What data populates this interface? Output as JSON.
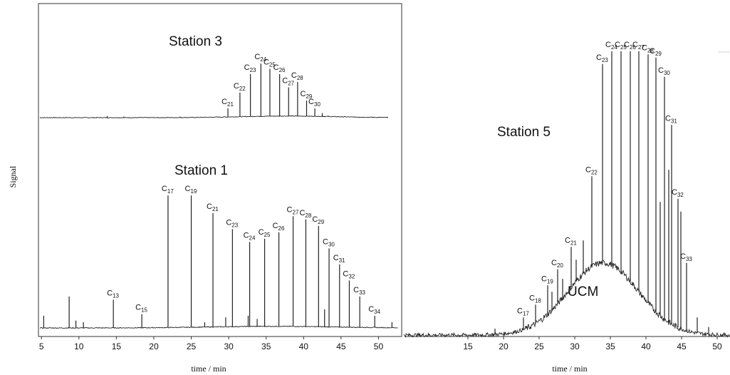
{
  "chart_data": {
    "type": "line",
    "ylabel": "Signal",
    "panels": [
      {
        "name": "left",
        "xlabel": "time / min",
        "xlim": [
          4.6,
          53
        ],
        "xticks": [
          5,
          10,
          15,
          20,
          25,
          30,
          35,
          40,
          45,
          50
        ],
        "traces": [
          {
            "label": "Station 3",
            "baseline": 0.205,
            "x_range": [
              4.8,
              51.3
            ],
            "hump": {
              "center": 38,
              "width": 9,
              "height": 0.006
            },
            "peaks": [
              {
                "label": "C",
                "sub": "21",
                "x": 29.9,
                "y": 0.24
              },
              {
                "label": "C",
                "sub": "22",
                "x": 31.5,
                "y": 0.3
              },
              {
                "label": "C",
                "sub": "23",
                "x": 32.9,
                "y": 0.37
              },
              {
                "label": "C",
                "sub": "24",
                "x": 34.3,
                "y": 0.41
              },
              {
                "label": "C",
                "sub": "25",
                "x": 35.5,
                "y": 0.39
              },
              {
                "label": "C",
                "sub": "26",
                "x": 36.8,
                "y": 0.37
              },
              {
                "label": "C",
                "sub": "27",
                "x": 38.0,
                "y": 0.32
              },
              {
                "label": "C",
                "sub": "28",
                "x": 39.2,
                "y": 0.34
              },
              {
                "label": "C",
                "sub": "29",
                "x": 40.4,
                "y": 0.27
              },
              {
                "label": "C",
                "sub": "30",
                "x": 41.5,
                "y": 0.24
              }
            ],
            "extra_peaks": [
              [
                42.5,
                0.222
              ],
              [
                43.3,
                0.212
              ],
              [
                13.8,
                0.211
              ],
              [
                16.0,
                0.209
              ],
              [
                23.5,
                0.209
              ]
            ]
          },
          {
            "label": "Station 1",
            "baseline": 0.012,
            "x_range": [
              4.8,
              52.6
            ],
            "hump": {
              "center": 36,
              "width": 12,
              "height": 0.005
            },
            "peaks": [
              {
                "label": "C",
                "sub": "13",
                "x": 14.6,
                "y": 0.1
              },
              {
                "label": "C",
                "sub": "15",
                "x": 18.4,
                "y": 0.055
              },
              {
                "label": "C",
                "sub": "17",
                "x": 21.9,
                "y": 0.425
              },
              {
                "label": "C",
                "sub": "19",
                "x": 25.0,
                "y": 0.425
              },
              {
                "label": "C",
                "sub": "21",
                "x": 27.9,
                "y": 0.37
              },
              {
                "label": "C",
                "sub": "23",
                "x": 30.5,
                "y": 0.32
              },
              {
                "label": "C",
                "sub": "24",
                "x": 32.8,
                "y": 0.28
              },
              {
                "label": "C",
                "sub": "25",
                "x": 34.8,
                "y": 0.29
              },
              {
                "label": "C",
                "sub": "26",
                "x": 36.7,
                "y": 0.31
              },
              {
                "label": "C",
                "sub": "27",
                "x": 38.6,
                "y": 0.36
              },
              {
                "label": "C",
                "sub": "28",
                "x": 40.3,
                "y": 0.35
              },
              {
                "label": "C",
                "sub": "29",
                "x": 42.0,
                "y": 0.33
              },
              {
                "label": "C",
                "sub": "30",
                "x": 43.4,
                "y": 0.26
              },
              {
                "label": "C",
                "sub": "31",
                "x": 44.8,
                "y": 0.21
              },
              {
                "label": "C",
                "sub": "32",
                "x": 46.1,
                "y": 0.16
              },
              {
                "label": "C",
                "sub": "33",
                "x": 47.5,
                "y": 0.11
              },
              {
                "label": "C",
                "sub": "34",
                "x": 49.5,
                "y": 0.05
              }
            ],
            "extra_peaks": [
              [
                5.3,
                0.05
              ],
              [
                8.7,
                0.11
              ],
              [
                9.6,
                0.035
              ],
              [
                10.6,
                0.03
              ],
              [
                29.6,
                0.045
              ],
              [
                32.6,
                0.05
              ],
              [
                42.8,
                0.07
              ],
              [
                51.8,
                0.03
              ],
              [
                26.8,
                0.03
              ],
              [
                33.8,
                0.04
              ]
            ]
          }
        ]
      },
      {
        "name": "right",
        "xlabel": "time / min",
        "xlim": [
          6,
          51.8
        ],
        "xticks": [
          15,
          20,
          25,
          30,
          35,
          40,
          45,
          50
        ],
        "traces": [
          {
            "label": "Station 5",
            "annotation": "UCM",
            "baseline": 0.035,
            "x_range": [
              6.0,
              51.8
            ],
            "hump": {
              "center": 34,
              "width": 7,
              "height": 0.225
            },
            "peaks": [
              {
                "label": "C",
                "sub": "17",
                "x": 22.8,
                "y": 0.09
              },
              {
                "label": "C",
                "sub": "18",
                "x": 24.5,
                "y": 0.13
              },
              {
                "label": "C",
                "sub": "19",
                "x": 26.2,
                "y": 0.19
              },
              {
                "label": "C",
                "sub": "20",
                "x": 27.6,
                "y": 0.24
              },
              {
                "label": "C",
                "sub": "21",
                "x": 29.5,
                "y": 0.31
              },
              {
                "label": "C",
                "sub": "22",
                "x": 32.4,
                "y": 0.53
              },
              {
                "label": "C",
                "sub": "23",
                "x": 33.9,
                "y": 0.88
              },
              {
                "label": "C",
                "sub": "24",
                "x": 35.2,
                "y": 0.92
              },
              {
                "label": "C",
                "sub": "25",
                "x": 36.5,
                "y": 0.92
              },
              {
                "label": "C",
                "sub": "26",
                "x": 37.8,
                "y": 0.92
              },
              {
                "label": "C",
                "sub": "27",
                "x": 39.0,
                "y": 0.92
              },
              {
                "label": "C",
                "sub": "28",
                "x": 40.3,
                "y": 0.91
              },
              {
                "label": "C",
                "sub": "29",
                "x": 41.4,
                "y": 0.9
              },
              {
                "label": "C",
                "sub": "30",
                "x": 42.6,
                "y": 0.84
              },
              {
                "label": "C",
                "sub": "31",
                "x": 43.6,
                "y": 0.69
              },
              {
                "label": "C",
                "sub": "32",
                "x": 44.5,
                "y": 0.46
              },
              {
                "label": "C",
                "sub": "33",
                "x": 45.7,
                "y": 0.26
              }
            ],
            "extra_peaks": [
              [
                18.8,
                0.055
              ],
              [
                31.2,
                0.33
              ],
              [
                30.2,
                0.27
              ],
              [
                42.0,
                0.45
              ],
              [
                43.2,
                0.55
              ],
              [
                44.9,
                0.42
              ],
              [
                47.2,
                0.09
              ],
              [
                48.8,
                0.06
              ],
              [
                28.3,
                0.21
              ],
              [
                26.8,
                0.17
              ]
            ]
          }
        ]
      }
    ]
  }
}
